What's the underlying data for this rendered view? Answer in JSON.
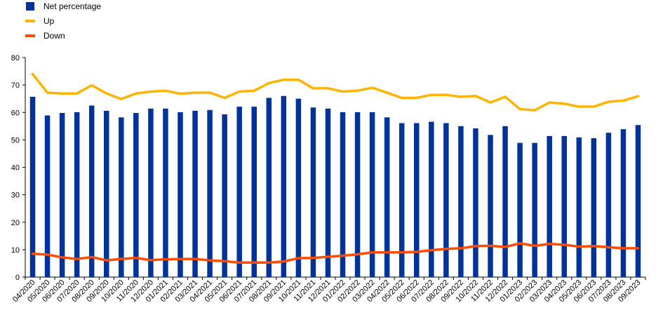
{
  "chart_data": {
    "type": "bar",
    "categories": [
      "04/2020",
      "05/2020",
      "06/2020",
      "07/2020",
      "08/2020",
      "09/2020",
      "10/2020",
      "11/2020",
      "12/2020",
      "01/2021",
      "02/2021",
      "03/2021",
      "04/2021",
      "05/2021",
      "06/2021",
      "07/2021",
      "08/2021",
      "09/2021",
      "10/2021",
      "11/2021",
      "12/2021",
      "01/2022",
      "02/2022",
      "03/2022",
      "04/2022",
      "05/2022",
      "06/2022",
      "07/2022",
      "08/2022",
      "09/2022",
      "10/2022",
      "11/2022",
      "12/2022",
      "01/2023",
      "02/2023",
      "03/2023",
      "04/2023",
      "05/2023",
      "06/2023",
      "07/2023",
      "08/2023",
      "09/2023"
    ],
    "series": [
      {
        "name": "Net percentage",
        "type": "bar",
        "color": "#003399",
        "values": [
          65.7,
          58.9,
          59.8,
          60.1,
          62.5,
          60.6,
          58.2,
          59.8,
          61.4,
          61.4,
          60.1,
          60.6,
          60.9,
          59.3,
          62.1,
          62.1,
          65.3,
          66.0,
          65.0,
          61.8,
          61.4,
          60.1,
          60.1,
          60.1,
          58.2,
          56.1,
          56.1,
          56.6,
          56.1,
          55.0,
          54.2,
          51.8,
          55.0,
          48.9,
          48.9,
          51.4,
          51.4,
          50.9,
          50.6,
          52.6,
          53.9,
          55.4
        ]
      },
      {
        "name": "Up",
        "type": "line",
        "color": "#FFB400",
        "values": [
          74.0,
          67.2,
          66.9,
          66.9,
          69.9,
          66.9,
          64.9,
          66.9,
          67.6,
          67.9,
          66.8,
          67.2,
          67.2,
          65.3,
          67.6,
          67.9,
          70.7,
          71.9,
          71.9,
          68.8,
          68.8,
          67.6,
          67.9,
          69.0,
          67.2,
          65.3,
          65.3,
          66.4,
          66.4,
          65.7,
          66.0,
          63.6,
          65.7,
          61.2,
          60.8,
          63.6,
          63.2,
          62.1,
          62.1,
          63.9,
          64.3,
          65.9
        ]
      },
      {
        "name": "Down",
        "type": "line",
        "color": "#FF4B00",
        "values": [
          8.5,
          8.2,
          7.2,
          6.6,
          7.3,
          6.1,
          6.6,
          7.0,
          6.2,
          6.5,
          6.6,
          6.6,
          6.1,
          5.8,
          5.3,
          5.3,
          5.3,
          5.7,
          6.9,
          7.0,
          7.4,
          7.8,
          8.3,
          9.0,
          9.0,
          9.0,
          9.2,
          9.8,
          10.3,
          10.5,
          11.3,
          11.4,
          11.0,
          12.3,
          11.4,
          12.1,
          11.8,
          11.1,
          11.3,
          10.9,
          10.5,
          10.5
        ]
      }
    ],
    "ylim": [
      0,
      80
    ],
    "yticks": [
      0,
      10,
      20,
      30,
      40,
      50,
      60,
      70,
      80
    ],
    "legend_position": "top-left",
    "grid": false
  }
}
